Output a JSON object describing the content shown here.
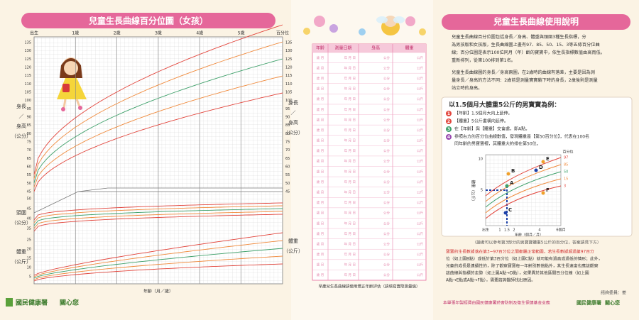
{
  "left": {
    "title": "兒童生長曲線百分位圖（女孩）",
    "top_axis": [
      "出生",
      "1歲",
      "2歲",
      "3歲",
      "4歲",
      "5歲"
    ],
    "percentile_label": "百分位",
    "height_ticks": [
      "135",
      "130",
      "125",
      "120",
      "115",
      "110",
      "105",
      "100",
      "95",
      "90",
      "85",
      "80",
      "75",
      "70",
      "65",
      "60",
      "55",
      "50",
      "45"
    ],
    "height_label": [
      "身長",
      "／",
      "身高",
      "（公分）"
    ],
    "head_ticks": [
      "50",
      "45",
      "40",
      "35"
    ],
    "head_label": [
      "頭圍",
      "（公分）"
    ],
    "weight_ticks": [
      "25",
      "20",
      "15",
      "10",
      "5"
    ],
    "weight_label": [
      "體重",
      "（公斤）"
    ],
    "x_label": "年齡（月／歲）",
    "footer_org": "國民健康署",
    "footer_slogan": "關心您"
  },
  "table": {
    "headers": [
      "年齡",
      "測量日期",
      "身高",
      "體重"
    ],
    "rows": [
      {
        "age": "歲 月",
        "date": "年 月 日",
        "height": "公分",
        "weight": "公斤"
      },
      {
        "age": "歲 月",
        "date": "年 月 日",
        "height": "公分",
        "weight": "公斤"
      },
      {
        "age": "歲 月",
        "date": "年 月 日",
        "height": "公分",
        "weight": "公斤"
      },
      {
        "age": "歲 月",
        "date": "年 月 日",
        "height": "公分",
        "weight": "公斤"
      },
      {
        "age": "歲 月",
        "date": "年 月 日",
        "height": "公分",
        "weight": "公斤"
      },
      {
        "age": "歲 月",
        "date": "年 月 日",
        "height": "公分",
        "weight": "公斤"
      },
      {
        "age": "歲 月",
        "date": "年 月 日",
        "height": "公分",
        "weight": "公斤"
      },
      {
        "age": "歲 月",
        "date": "年 月 日",
        "height": "公分",
        "weight": "公斤"
      },
      {
        "age": "歲 月",
        "date": "年 月 日",
        "height": "公分",
        "weight": "公斤"
      },
      {
        "age": "歲 月",
        "date": "年 月 日",
        "height": "公分",
        "weight": "公斤"
      },
      {
        "age": "歲 月",
        "date": "年 月 日",
        "height": "公分",
        "weight": "公斤"
      },
      {
        "age": "歲 月",
        "date": "年 月 日",
        "height": "公分",
        "weight": "公斤"
      },
      {
        "age": "歲 月",
        "date": "年 月 日",
        "height": "公分",
        "weight": "公斤"
      },
      {
        "age": "歲 月",
        "date": "年 月 日",
        "height": "公分",
        "weight": "公斤"
      },
      {
        "age": "歲 月",
        "date": "年 月 日",
        "height": "公分",
        "weight": "公斤"
      },
      {
        "age": "歲 月",
        "date": "年 月 日",
        "height": "公分",
        "weight": "公斤"
      },
      {
        "age": "歲 月",
        "date": "年 月 日",
        "height": "公分",
        "weight": "公斤"
      },
      {
        "age": "歲 月",
        "date": "年 月 日",
        "height": "公分",
        "weight": "公斤"
      },
      {
        "age": "歲 月",
        "date": "年 月 日",
        "height": "公分",
        "weight": "公斤"
      },
      {
        "age": "歲 月",
        "date": "年 月 日",
        "height": "公分",
        "weight": "公斤"
      },
      {
        "age": "歲 月",
        "date": "年 月 日",
        "height": "公分",
        "weight": "公斤"
      },
      {
        "age": "歲 月",
        "date": "年 月 日",
        "height": "公分",
        "weight": "公斤"
      }
    ],
    "note": "早產兒生長曲線請使用矯正年齡評估（請填寫實際測量值）"
  },
  "right": {
    "title": "兒童生長曲線使用說明",
    "paragraph1": [
      "兒童生長曲線百分位圖包括身長／身高、體重與頭圍3種生長指標，分",
      "為男孩版和女孩版，生長曲線圖上畫有97、85、50、15、3等五條百分位曲",
      "線；百分位圖是表示100位同月（年）齡的寶寶中，依生長指標數值由高而低，",
      "重新排列，從第100排到第1名。"
    ],
    "paragraph2": [
      "兒童生長曲線圖的身長／身高兩圖，在2歲時的曲線有落差，主要是因為測",
      "量身長／身高的方法不同：2歲前是測量寶寶躺下時的身長，2歲後則是測量",
      "站立時的身高。"
    ],
    "example_title": "以1.5個月大體重5公斤的男寶寶為例：",
    "steps": [
      {
        "num": "1",
        "lines": [
          "【年齡】1.5個月大向上延伸。"
        ]
      },
      {
        "num": "2",
        "lines": [
          "【體重】5公斤畫橫向延伸。"
        ]
      },
      {
        "num": "3",
        "lines": [
          "在【年齡】與【體重】交會處，即A點。"
        ]
      },
      {
        "num": "4",
        "lines": [
          "參照右方的百分位曲線數值，發現體重是【第50百分位】，代表在100名",
          "同年齡的男寶寶裡，其體重大約排在第50位。"
        ]
      }
    ],
    "example_chart": {
      "percentile_label": "百分位",
      "percentiles": [
        "97",
        "85",
        "50",
        "15",
        "3"
      ],
      "y_label": "體重（公斤）",
      "y_ticks": [
        "10",
        "5"
      ],
      "x_ticks": [
        "出生",
        "1",
        "1.5",
        "2",
        "4",
        "6個月"
      ],
      "x_label": "年齡（個月／月）",
      "points": [
        "A",
        "B",
        "C",
        "D",
        "E",
        "F"
      ]
    },
    "caption": "（讀者可以參考第3部分的男寶寶體重5公斤的百分位，答案請見下方）",
    "warning": [
      "寶寶的生長數據落在第3~97百分位之間都屬正常範圍，若生長數據超過第97百分",
      "位（如上圖B點）或低於第3百分位（如上圖C點）就可能有過高或過低的情形；此外，",
      "兒童的成長是連續性的，除了觀察寶寶每一年齡別數值點外，其生長速度也應該觀察",
      "該曲線與指標的走勢（如上圖A點→D點），如果異於其他區間百分位線（如上圖",
      "A點→E點或A點→F點），需要諮詢醫師找出原因。"
    ],
    "credit": "諮詢委員：姜",
    "fund_note": "本單張印製經費由國民健康署菸害防制及衛生保健基金支應",
    "footer_org": "國民健康署",
    "footer_slogan": "關心您"
  }
}
